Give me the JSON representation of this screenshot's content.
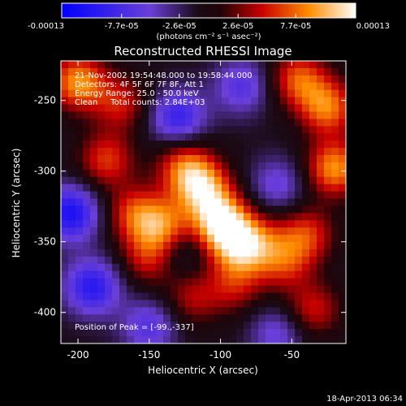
{
  "chart_data": {
    "type": "heatmap",
    "title": "Reconstructed RHESSI Image",
    "xlabel": "Heliocentric X (arcsec)",
    "ylabel": "Heliocentric Y (arcsec)",
    "xlim": [
      -212,
      -12
    ],
    "ylim": [
      -422,
      -222
    ],
    "x_ticks": [
      -200,
      -150,
      -100,
      -50
    ],
    "y_ticks": [
      -250,
      -300,
      -350,
      -400
    ],
    "x_tick_labels": [
      "-200",
      "-150",
      "-100",
      "-50"
    ],
    "y_tick_labels": [
      "-250",
      "-300",
      "-350",
      "-400"
    ],
    "colorbar": {
      "min": -0.00013,
      "max": 0.00013,
      "tick_values": [
        -0.00013,
        -7.7e-05,
        -2.6e-05,
        2.6e-05,
        7.7e-05,
        0.00013
      ],
      "tick_labels": [
        "-0.00013",
        "-7.7e-05",
        "-2.6e-05",
        "2.6e-05",
        "7.7e-05",
        "0.00013"
      ],
      "unit_label": "(photons cm⁻² s⁻¹ asec⁻²)"
    },
    "annotations": [
      "21-Nov-2002 19:54:48.000 to 19:58:44.000",
      "Detectors: 4F 5F 6F 7F 8F, Att 1",
      "Energy Range: 25.0 - 50.0 keV",
      "Clean     Total counts: 2.84E+03",
      "Position of Peak = [-99.,-337]"
    ],
    "peak": {
      "x": -99,
      "y": -337
    },
    "blobs": [
      {
        "x": -99,
        "y": -337,
        "v": 0.00013
      },
      {
        "x": -112,
        "y": -313,
        "v": 0.0001
      },
      {
        "x": -125,
        "y": -297,
        "v": 8e-05
      },
      {
        "x": -140,
        "y": -340,
        "v": 9e-05
      },
      {
        "x": -160,
        "y": -330,
        "v": 7e-05
      },
      {
        "x": -150,
        "y": -362,
        "v": 6e-05
      },
      {
        "x": -88,
        "y": -356,
        "v": 7e-05
      },
      {
        "x": -75,
        "y": -350,
        "v": 6e-05
      },
      {
        "x": -180,
        "y": -292,
        "v": 7e-05
      },
      {
        "x": -170,
        "y": -252,
        "v": 6e-05
      },
      {
        "x": -200,
        "y": -237,
        "v": 0.0001
      },
      {
        "x": -45,
        "y": -235,
        "v": 8e-05
      },
      {
        "x": -25,
        "y": -255,
        "v": 9e-05
      },
      {
        "x": -20,
        "y": -298,
        "v": 0.0001
      },
      {
        "x": -40,
        "y": -345,
        "v": 7e-05
      },
      {
        "x": -55,
        "y": -365,
        "v": 6e-05
      },
      {
        "x": -120,
        "y": -390,
        "v": 5e-05
      },
      {
        "x": -90,
        "y": -382,
        "v": 5e-05
      },
      {
        "x": -35,
        "y": -398,
        "v": 6e-05
      },
      {
        "x": -85,
        "y": -240,
        "v": -6e-05
      },
      {
        "x": -130,
        "y": -262,
        "v": -8e-05
      },
      {
        "x": -205,
        "y": -330,
        "v": -0.0001
      },
      {
        "x": -190,
        "y": -382,
        "v": -9e-05
      },
      {
        "x": -130,
        "y": -355,
        "v": -4e-05
      },
      {
        "x": -60,
        "y": -310,
        "v": -5e-05
      },
      {
        "x": -150,
        "y": -410,
        "v": -6e-05
      },
      {
        "x": -60,
        "y": -415,
        "v": -5e-05
      }
    ]
  },
  "footer": {
    "date_stamp": "18-Apr-2013 06:34"
  }
}
